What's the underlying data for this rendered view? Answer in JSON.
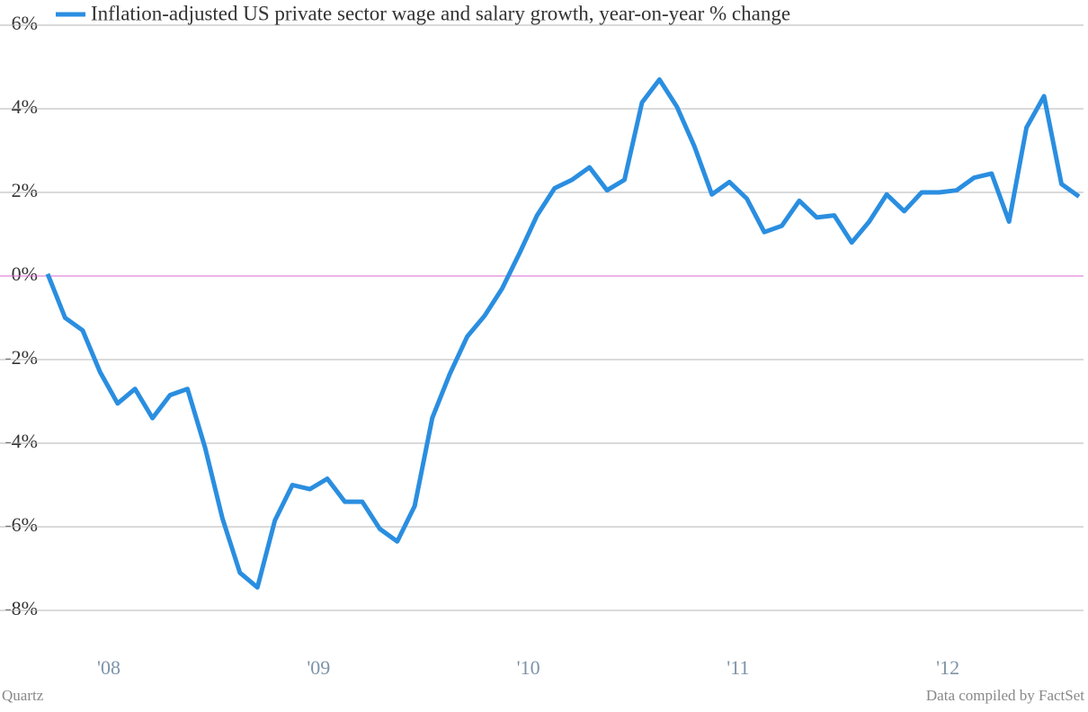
{
  "chart_data": {
    "type": "line",
    "categories": [
      null,
      null,
      null,
      "'08",
      null,
      null,
      null,
      null,
      null,
      null,
      null,
      null,
      null,
      null,
      null,
      "'09",
      null,
      null,
      null,
      null,
      null,
      null,
      null,
      null,
      null,
      null,
      null,
      "'10",
      null,
      null,
      null,
      null,
      null,
      null,
      null,
      null,
      null,
      null,
      null,
      "'11",
      null,
      null,
      null,
      null,
      null,
      null,
      null,
      null,
      null,
      null,
      null,
      "'12",
      null,
      null,
      null,
      null,
      null,
      null,
      null,
      null
    ],
    "series": [
      {
        "name": "Inflation-adjusted US private sector wage and salary growth, year-on-year % change",
        "color": "#2a8ee0",
        "values": [
          0.05,
          -1.0,
          -1.3,
          -2.3,
          -3.05,
          -2.7,
          -3.4,
          -2.85,
          -2.7,
          -4.1,
          -5.8,
          -7.1,
          -7.45,
          -5.85,
          -5.0,
          -5.1,
          -4.85,
          -5.4,
          -5.4,
          -6.05,
          -6.35,
          -5.5,
          -3.4,
          -2.35,
          -1.45,
          -0.95,
          -0.3,
          0.55,
          1.45,
          2.1,
          2.3,
          2.6,
          2.05,
          2.3,
          4.15,
          4.7,
          4.05,
          3.1,
          1.95,
          2.25,
          1.85,
          1.05,
          1.2,
          1.8,
          1.4,
          1.45,
          0.8,
          1.3,
          1.95,
          1.55,
          2.0,
          2.0,
          2.05,
          2.35,
          2.45,
          1.3,
          3.55,
          4.3,
          2.2,
          1.9
        ]
      }
    ],
    "ylim": [
      -9,
      6
    ],
    "yticks": [
      {
        "value": 6,
        "label": "6%"
      },
      {
        "value": 4,
        "label": "4%"
      },
      {
        "value": 2,
        "label": "2%"
      },
      {
        "value": 0,
        "label": "0%"
      },
      {
        "value": -2,
        "label": "-2%"
      },
      {
        "value": -4,
        "label": "-4%"
      },
      {
        "value": -6,
        "label": "-6%"
      },
      {
        "value": -8,
        "label": "-8%"
      }
    ],
    "grid": true,
    "zero_line_color": "#d96ad0",
    "source_left": "Quartz",
    "source_right": "Data compiled by FactSet"
  }
}
